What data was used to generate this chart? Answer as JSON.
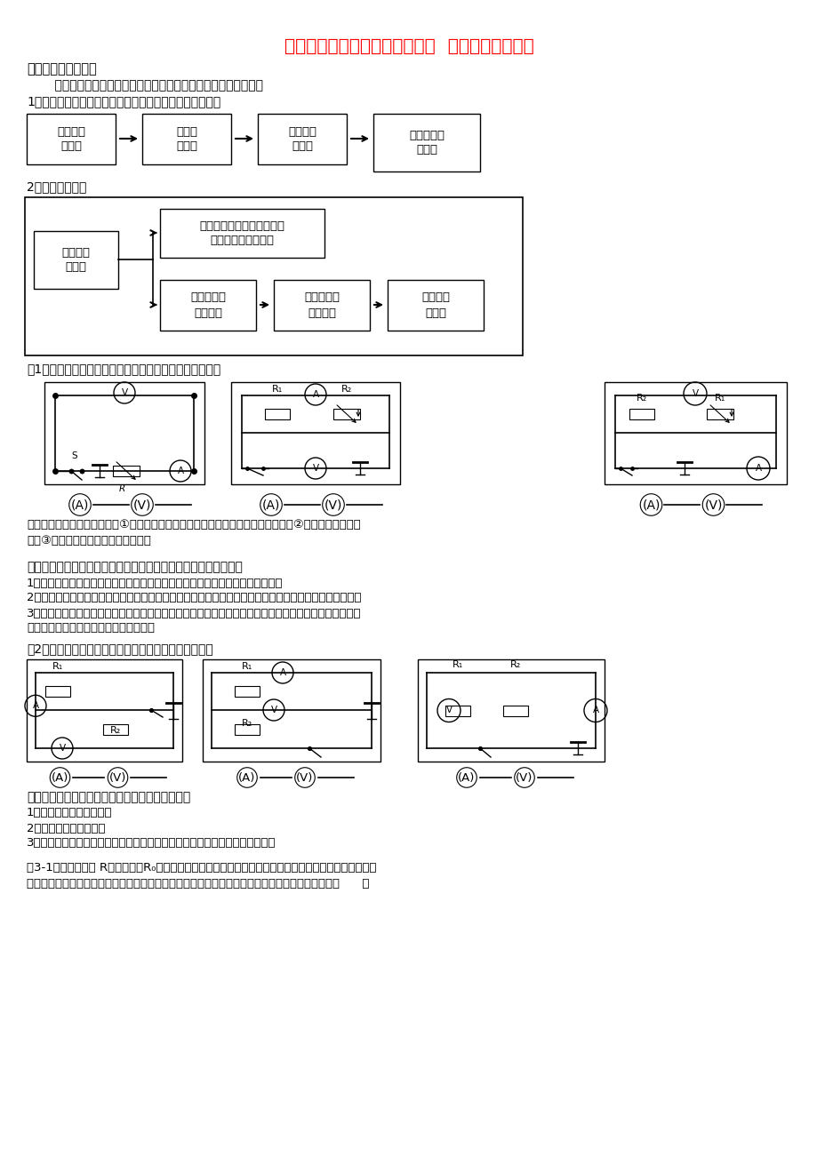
{
  "title": "广东省深圳市中考物理专题复习  动态电路分析练习",
  "title_color": "#FF0000",
  "bg_color": "#FFFFFF",
  "text_color": "#000000",
  "section1_header": "一、动态电路分析：",
  "section1_type1": "    第一种类型：滑动变阻器滑片的移动引起的电路中物理量的变化",
  "section1_line2": "1、串联电路中，电流简单，电压复杂，所以分析思路为：",
  "series_boxes": [
    "滑片的移\n动方向",
    "总电阻\n怎么变",
    "电路电流\n怎么变",
    "各部分电压\n怎么变"
  ],
  "section1_line3": "2、并联电路中，",
  "parallel_box_left": "滑片的移\n动方向",
  "parallel_box_top": "另一条支路电压、电阻和电\n流都不变，不受影响",
  "parallel_box_mid1": "所在支路电\n阻怎么变",
  "parallel_box_mid2": "所在支路电\n流怎么变",
  "parallel_box_mid3": "干路电流\n怎么变",
  "example1_text": "例1、下列图中，滑片向右移时，各表的示数变化情况是：",
  "open_close_text1": "开关通断引起电路变化分析：①增加或减小（短路某个电阻）接入电路电阻的个数；②改变电路的连接方",
  "open_close_text2": "式；③使电表所连接的位置发生改变。",
  "section2_header": "第二种类型：改变多个开关的闭合状态引起的电路中物理量的变化",
  "section2_line1": "1、首先确定初始时的电路性质（串联还是并联），确定各电表测的是哪段电路。",
  "section2_line2": "2、再确定电路变化后的性质（串联还是并联），确定各电表测的是哪段电路，必要时可画出等效电路图。",
  "section2_line3": "3、按串并联电路电流、电压的特点和欧姆定律确定电表的变化情况，看谁变了，谁没变，利用电源电压不",
  "section2_line4": "变、定值电阻不变等隐含条件解决问题。",
  "example2_text": "例2、下列图中，当开关闭合时，各表的示数如何变化？",
  "section3_header": "第三种类型：由传感器阻值变化引起电表示数变化",
  "section3_line1": "1、判断电路的连接方式。",
  "section3_line2": "2、明确电表测量范围。",
  "section3_line3": "3、根据外部条件判断电阻的变化情况。电阻的变化情况确定后同第一种类型。",
  "example3_text": "例3-1、将光敏电阻 R、定值电阻R₀、电流表、电压表、开关和电源连接成如图电路。光敏电阻的阻值随光",
  "example3_text2": "照强度的增大而减小。闭合开关，逐渐增大光敏电阻的光照强度，观察电表示数的变化情况应该是（      ）"
}
